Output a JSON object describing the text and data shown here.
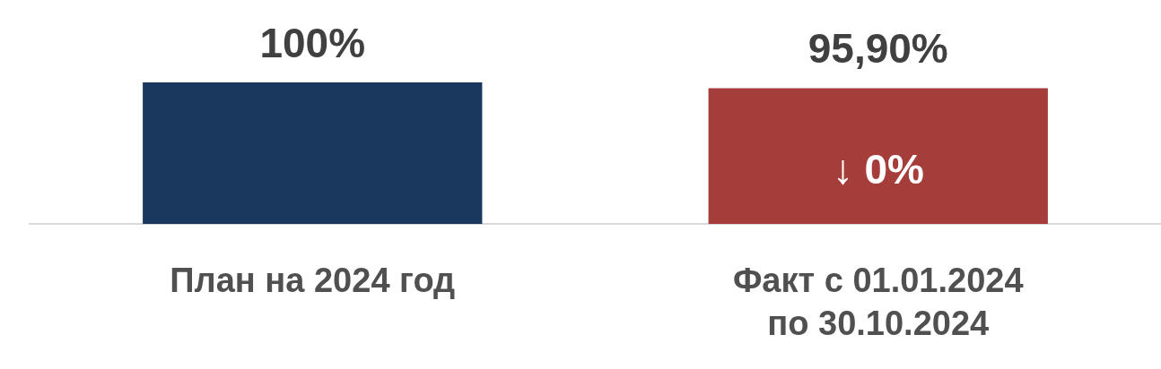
{
  "chart_data": {
    "type": "bar",
    "categories": [
      "План на 2024 год",
      "Факт с 01.01.2024 по 30.10.2024"
    ],
    "values": [
      100,
      95.9
    ],
    "colors": [
      "#1a385e",
      "#a53d3b"
    ],
    "value_labels": [
      "100%",
      "95,90%"
    ],
    "annotations": [
      "↓ 0%"
    ],
    "grid": false,
    "legend": false
  }
}
